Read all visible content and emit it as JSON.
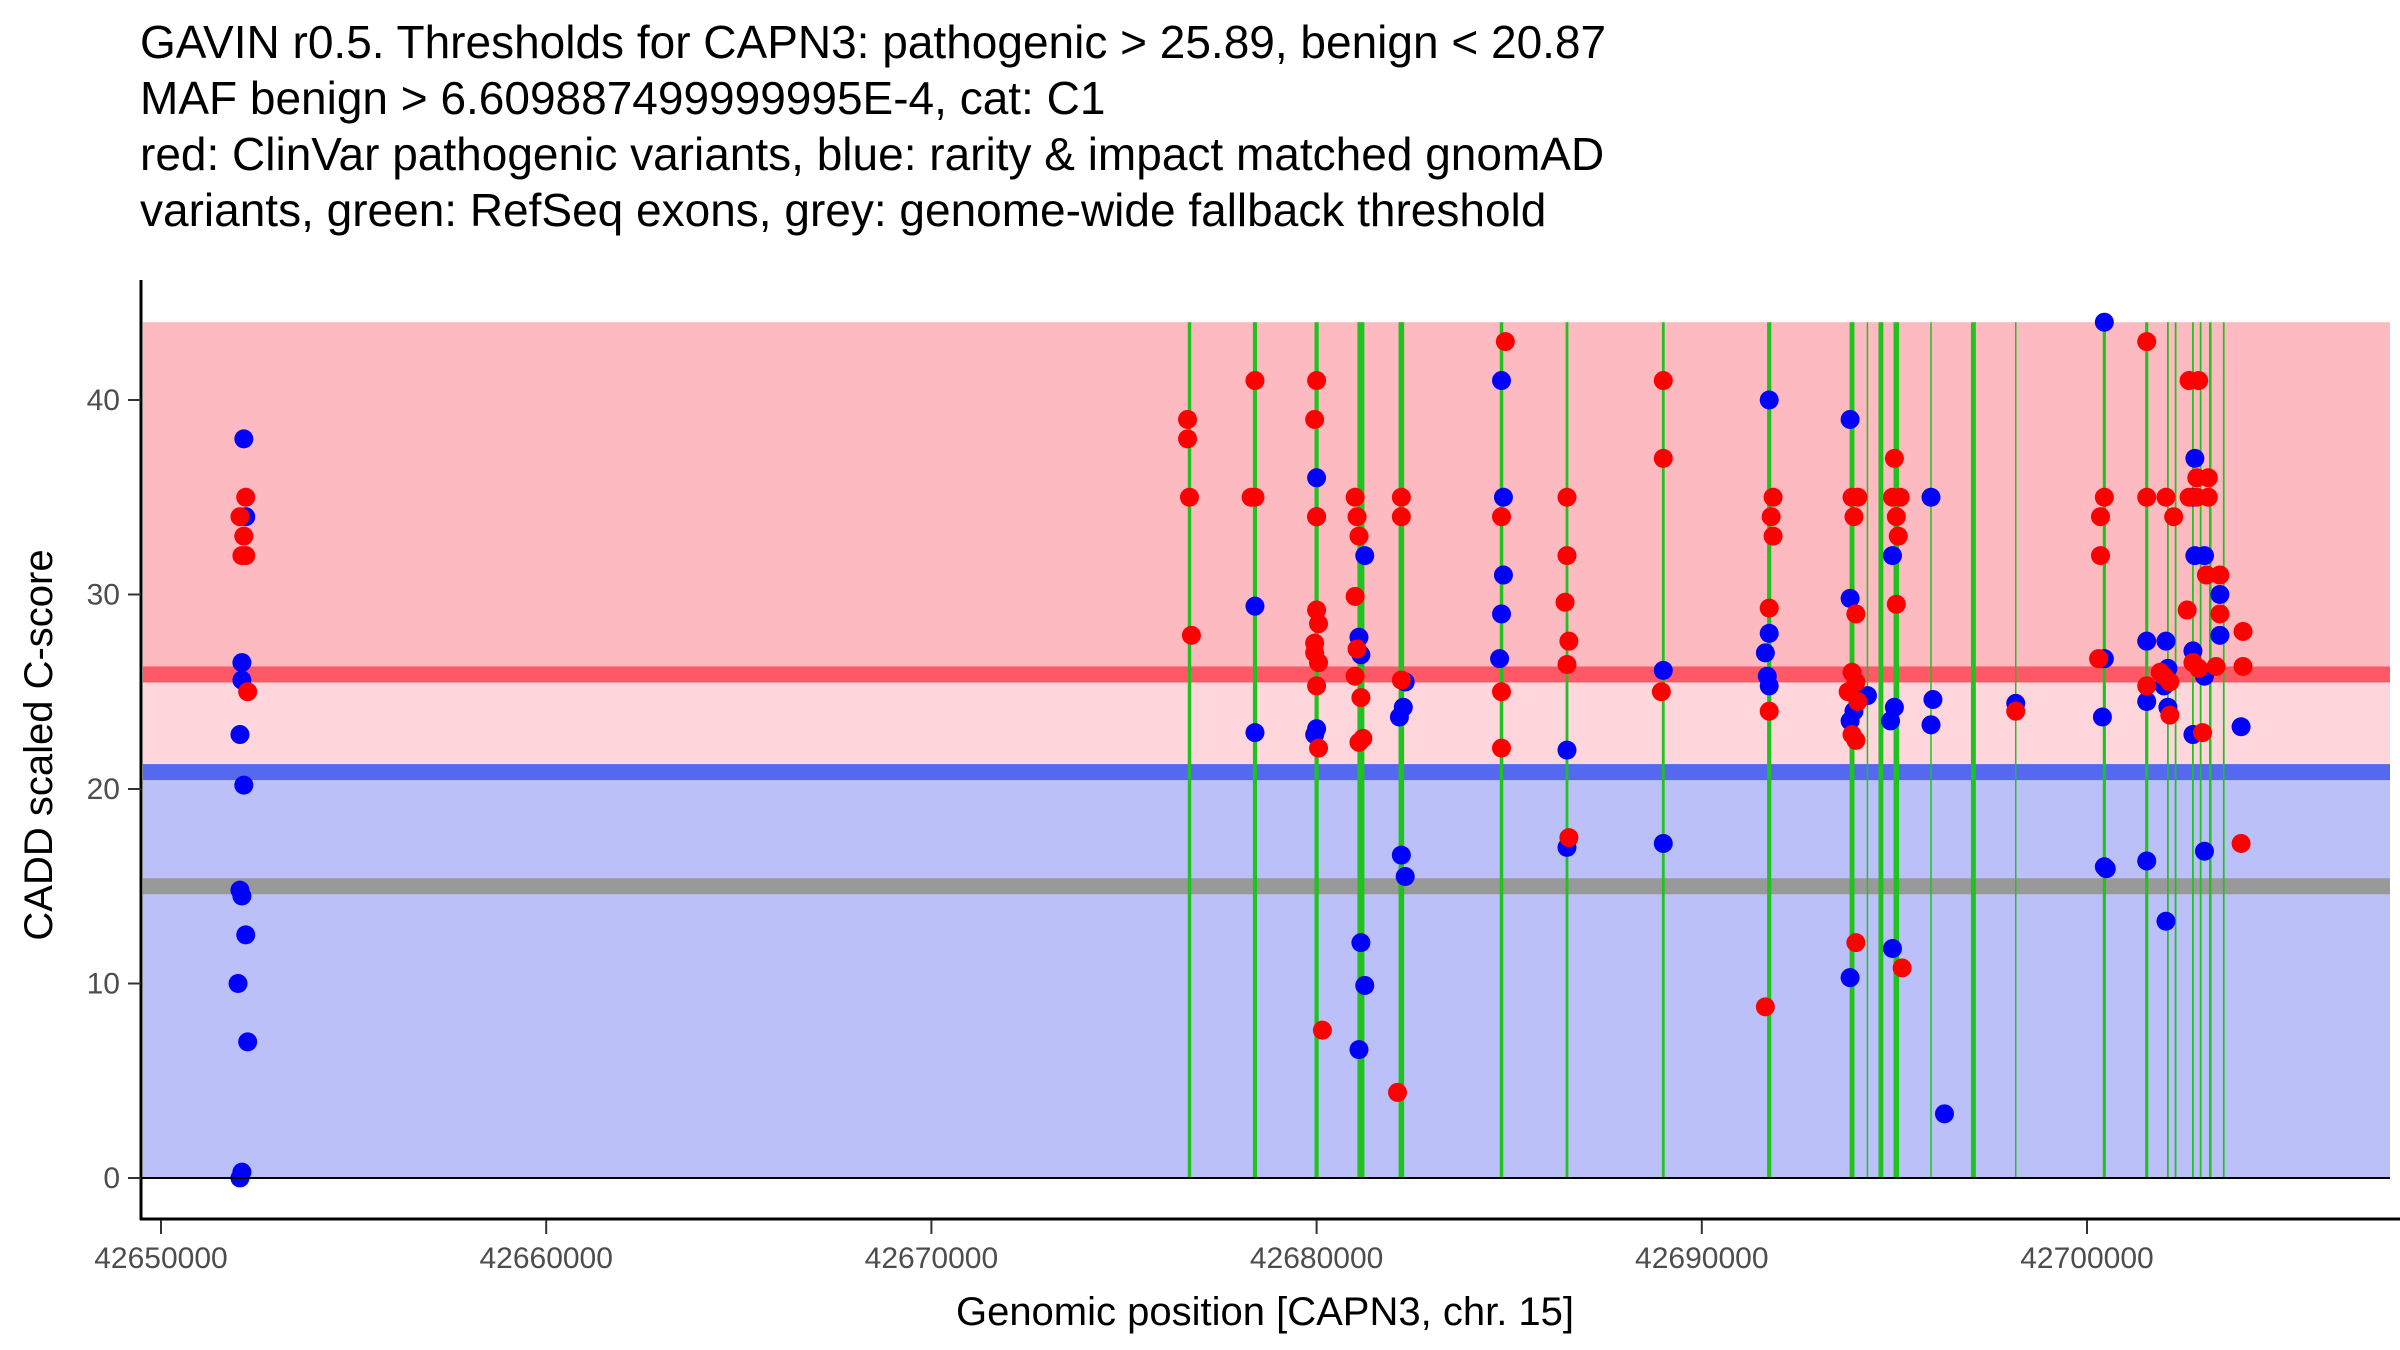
{
  "title_lines": [
    "GAVIN r0.5. Thresholds for CAPN3: pathogenic > 25.89, benign < 20.87",
    "MAF benign > 6.609887499999995E-4, cat: C1",
    "red: ClinVar pathogenic variants, blue: rarity & impact matched gnomAD",
    "variants, green: RefSeq exons, grey: genome-wide fallback threshold"
  ],
  "chart_data": {
    "type": "scatter",
    "title": "GAVIN r0.5. Thresholds for CAPN3: pathogenic > 25.89, benign < 20.87",
    "subtitle": "MAF benign > 6.609887499999995E-4, cat: C1",
    "xlabel": "Genomic position [CAPN3, chr. 15]",
    "ylabel": "CADD scaled C-score",
    "xlim": [
      42649500,
      42706500
    ],
    "ylim": [
      -2,
      46
    ],
    "x_ticks": [
      42650000,
      42660000,
      42670000,
      42680000,
      42690000,
      42700000
    ],
    "x_tick_labels": [
      "42650000",
      "42660000",
      "42670000",
      "42680000",
      "42690000",
      "42700000"
    ],
    "y_ticks": [
      0,
      10,
      20,
      30,
      40
    ],
    "y_tick_labels": [
      "0",
      "10",
      "20",
      "30",
      "40"
    ],
    "grid": false,
    "colors": {
      "pathogenic_point": "#ff0000",
      "benign_point": "#0000ff",
      "exon": "#1ec31e",
      "pathogenic_zone": "#fdbbc1",
      "vus_zone": "#fed6db",
      "benign_zone": "#bbc1f8",
      "pathogenic_threshold_line": "#ff5867",
      "benign_threshold_line": "#5468f0",
      "fallback_threshold_line": "#999999"
    },
    "regions": [
      {
        "name": "pathogenic-zone",
        "y0": 25.89,
        "y1": 44
      },
      {
        "name": "vus-zone",
        "y0": 20.87,
        "y1": 25.89
      },
      {
        "name": "benign-zone",
        "y0": 0,
        "y1": 20.87
      }
    ],
    "thresholds": [
      {
        "name": "pathogenic",
        "y": 25.89
      },
      {
        "name": "benign",
        "y": 20.87
      },
      {
        "name": "genome-wide-fallback",
        "y": 15
      }
    ],
    "exons": [
      {
        "x": 42676700,
        "w": 1
      },
      {
        "x": 42678400,
        "w": 1.2
      },
      {
        "x": 42680000,
        "w": 1.2
      },
      {
        "x": 42681150,
        "w": 2
      },
      {
        "x": 42682200,
        "w": 1.6
      },
      {
        "x": 42684800,
        "w": 1
      },
      {
        "x": 42686500,
        "w": 0.8
      },
      {
        "x": 42689000,
        "w": 0.8
      },
      {
        "x": 42691750,
        "w": 1.2
      },
      {
        "x": 42693900,
        "w": 1.4
      },
      {
        "x": 42694300,
        "w": 0.3
      },
      {
        "x": 42694650,
        "w": 1.4
      },
      {
        "x": 42695050,
        "w": 1.6
      },
      {
        "x": 42695950,
        "w": 0.3
      },
      {
        "x": 42697050,
        "w": 1.4
      },
      {
        "x": 42698150,
        "w": 0.3
      },
      {
        "x": 42700450,
        "w": 0.9
      },
      {
        "x": 42701550,
        "w": 0.9
      },
      {
        "x": 42702100,
        "w": 0.5
      },
      {
        "x": 42702300,
        "w": 0.5
      },
      {
        "x": 42702750,
        "w": 0.5
      },
      {
        "x": 42702950,
        "w": 0.5
      },
      {
        "x": 42703200,
        "w": 0.7
      },
      {
        "x": 42703550,
        "w": 0.5
      }
    ],
    "series": [
      {
        "name": "gnomAD rarity & impact matched variants",
        "color": "#0000ff",
        "points": [
          [
            42652150,
            38
          ],
          [
            42652200,
            34
          ],
          [
            42652100,
            26.5
          ],
          [
            42652100,
            25.6
          ],
          [
            42652050,
            22.8
          ],
          [
            42652150,
            20.2
          ],
          [
            42652050,
            14.8
          ],
          [
            42652100,
            14.5
          ],
          [
            42652200,
            12.5
          ],
          [
            42652000,
            10
          ],
          [
            42652250,
            7
          ],
          [
            42652100,
            0.3
          ],
          [
            42652050,
            0
          ],
          [
            42678400,
            29.4
          ],
          [
            42678400,
            22.9
          ],
          [
            42680000,
            36
          ],
          [
            42680000,
            34
          ],
          [
            42680000,
            23.1
          ],
          [
            42679950,
            22.8
          ],
          [
            42681100,
            27.8
          ],
          [
            42681150,
            26.9
          ],
          [
            42681250,
            32
          ],
          [
            42681150,
            12.1
          ],
          [
            42681250,
            9.9
          ],
          [
            42681100,
            6.6
          ],
          [
            42682300,
            25.5
          ],
          [
            42682250,
            24.2
          ],
          [
            42682150,
            23.7
          ],
          [
            42682200,
            16.6
          ],
          [
            42682300,
            15.5
          ],
          [
            42684800,
            41
          ],
          [
            42684850,
            35
          ],
          [
            42684850,
            31
          ],
          [
            42684800,
            29
          ],
          [
            42684750,
            26.7
          ],
          [
            42686500,
            22
          ],
          [
            42686500,
            17
          ],
          [
            42689000,
            26.1
          ],
          [
            42689000,
            17.2
          ],
          [
            42691750,
            40
          ],
          [
            42691750,
            28
          ],
          [
            42691650,
            27
          ],
          [
            42691700,
            25.8
          ],
          [
            42691750,
            25.3
          ],
          [
            42693850,
            39
          ],
          [
            42693850,
            29.8
          ],
          [
            42693850,
            25
          ],
          [
            42693950,
            24
          ],
          [
            42693850,
            23.5
          ],
          [
            42693850,
            10.3
          ],
          [
            42694300,
            24.8
          ],
          [
            42694950,
            32
          ],
          [
            42695000,
            24.2
          ],
          [
            42694900,
            23.5
          ],
          [
            42694950,
            11.8
          ],
          [
            42695950,
            35
          ],
          [
            42696000,
            24.6
          ],
          [
            42695950,
            23.3
          ],
          [
            42696300,
            3.3
          ],
          [
            42698150,
            24.4
          ],
          [
            42700450,
            44
          ],
          [
            42700450,
            26.7
          ],
          [
            42700400,
            23.7
          ],
          [
            42700450,
            16
          ],
          [
            42700500,
            15.9
          ],
          [
            42701550,
            27.6
          ],
          [
            42701550,
            24.5
          ],
          [
            42701550,
            16.3
          ],
          [
            42702050,
            27.6
          ],
          [
            42702100,
            26.2
          ],
          [
            42702000,
            25.3
          ],
          [
            42702100,
            24.2
          ],
          [
            42702050,
            13.2
          ],
          [
            42702750,
            35
          ],
          [
            42702800,
            37
          ],
          [
            42702800,
            32
          ],
          [
            42702750,
            27.1
          ],
          [
            42702750,
            22.8
          ],
          [
            42703050,
            32
          ],
          [
            42703050,
            25.8
          ],
          [
            42703050,
            16.8
          ],
          [
            42703450,
            30
          ],
          [
            42703450,
            27.9
          ],
          [
            42704000,
            23.2
          ]
        ]
      },
      {
        "name": "ClinVar pathogenic variants",
        "color": "#ff0000",
        "points": [
          [
            42652200,
            35
          ],
          [
            42652050,
            34
          ],
          [
            42652150,
            33
          ],
          [
            42652100,
            32
          ],
          [
            42652200,
            32
          ],
          [
            42652250,
            25
          ],
          [
            42676650,
            39
          ],
          [
            42676650,
            38
          ],
          [
            42676700,
            35
          ],
          [
            42676750,
            27.9
          ],
          [
            42678400,
            41
          ],
          [
            42678400,
            35
          ],
          [
            42678300,
            35
          ],
          [
            42680000,
            41
          ],
          [
            42679950,
            39
          ],
          [
            42680000,
            34
          ],
          [
            42680000,
            29.2
          ],
          [
            42680050,
            28.5
          ],
          [
            42679950,
            27.5
          ],
          [
            42679950,
            27
          ],
          [
            42680050,
            26.5
          ],
          [
            42680000,
            25.3
          ],
          [
            42680050,
            22.1
          ],
          [
            42680150,
            7.6
          ],
          [
            42681000,
            35
          ],
          [
            42681050,
            34
          ],
          [
            42681100,
            33
          ],
          [
            42681000,
            29.9
          ],
          [
            42681050,
            27.2
          ],
          [
            42681000,
            25.8
          ],
          [
            42681150,
            24.7
          ],
          [
            42681100,
            22.4
          ],
          [
            42681200,
            22.6
          ],
          [
            42682200,
            35
          ],
          [
            42682200,
            34
          ],
          [
            42682200,
            25.6
          ],
          [
            42682100,
            4.4
          ],
          [
            42684900,
            43
          ],
          [
            42684800,
            34
          ],
          [
            42684800,
            25
          ],
          [
            42684800,
            22.1
          ],
          [
            42686500,
            35
          ],
          [
            42686500,
            32
          ],
          [
            42686450,
            29.6
          ],
          [
            42686550,
            27.6
          ],
          [
            42686500,
            26.4
          ],
          [
            42686550,
            17.5
          ],
          [
            42689000,
            41
          ],
          [
            42689000,
            37
          ],
          [
            42688950,
            25
          ],
          [
            42691850,
            35
          ],
          [
            42691800,
            34
          ],
          [
            42691850,
            33
          ],
          [
            42691750,
            29.3
          ],
          [
            42691750,
            24
          ],
          [
            42691650,
            8.8
          ],
          [
            42693900,
            35
          ],
          [
            42694050,
            35
          ],
          [
            42693950,
            34
          ],
          [
            42694000,
            29
          ],
          [
            42693900,
            26
          ],
          [
            42694000,
            25.5
          ],
          [
            42693800,
            25
          ],
          [
            42694050,
            24.5
          ],
          [
            42693900,
            22.8
          ],
          [
            42694000,
            22.5
          ],
          [
            42694000,
            12.1
          ],
          [
            42695000,
            37
          ],
          [
            42694950,
            35
          ],
          [
            42695150,
            35
          ],
          [
            42695050,
            34
          ],
          [
            42695100,
            33
          ],
          [
            42695050,
            29.5
          ],
          [
            42695200,
            10.8
          ],
          [
            42698150,
            24
          ],
          [
            42700450,
            35
          ],
          [
            42700350,
            34
          ],
          [
            42700350,
            32
          ],
          [
            42700300,
            26.7
          ],
          [
            42701550,
            43
          ],
          [
            42701550,
            35
          ],
          [
            42701550,
            25.3
          ],
          [
            42702050,
            35
          ],
          [
            42702250,
            34
          ],
          [
            42701900,
            26
          ],
          [
            42702000,
            25.8
          ],
          [
            42702150,
            25.5
          ],
          [
            42702150,
            23.8
          ],
          [
            42702650,
            41
          ],
          [
            42702900,
            41
          ],
          [
            42702650,
            35
          ],
          [
            42702850,
            35
          ],
          [
            42703150,
            35
          ],
          [
            42702850,
            36
          ],
          [
            42703150,
            36
          ],
          [
            42702600,
            29.2
          ],
          [
            42702750,
            26.5
          ],
          [
            42702900,
            26.2
          ],
          [
            42703100,
            31
          ],
          [
            42703450,
            31
          ],
          [
            42703450,
            29
          ],
          [
            42703350,
            26.3
          ],
          [
            42703000,
            22.9
          ],
          [
            42704050,
            28.1
          ],
          [
            42704050,
            26.3
          ],
          [
            42704000,
            17.2
          ]
        ]
      }
    ]
  }
}
